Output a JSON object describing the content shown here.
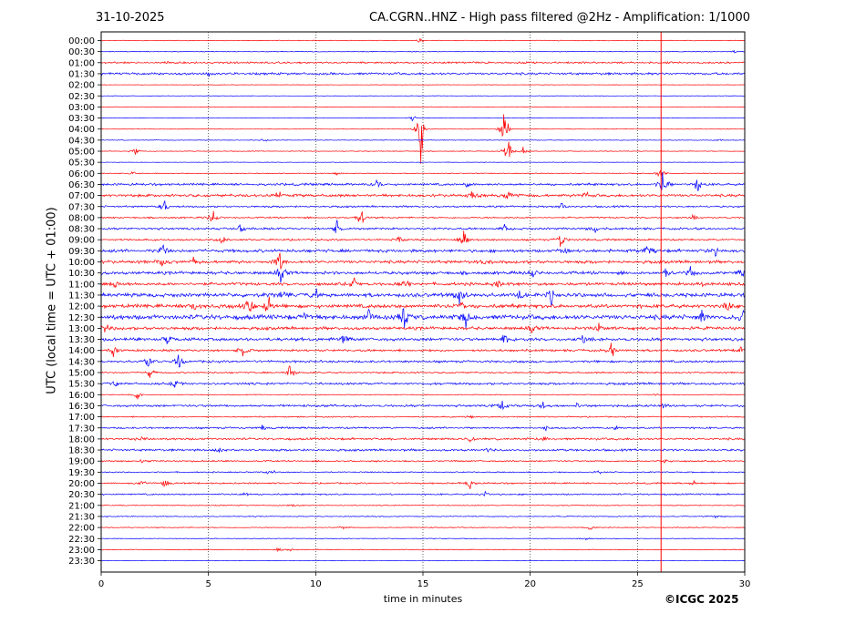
{
  "header": {
    "date": "31-10-2025",
    "title": "CA.CGRN..HNZ - High pass filtered @2Hz - Amplification: 1/1000"
  },
  "copyright": "©ICGC 2025",
  "chart_data": {
    "type": "line",
    "title": "CA.CGRN..HNZ - High pass filtered @2Hz - Amplification: 1/1000",
    "xlabel": "time in minutes",
    "ylabel": "UTC (local time = UTC + 01:00)",
    "xlim": [
      0,
      30
    ],
    "x_ticks": [
      0,
      5,
      10,
      15,
      20,
      25,
      30
    ],
    "grid": "vertical dotted at 5-minute ticks",
    "y_ticks": [
      "00:00",
      "00:30",
      "01:00",
      "01:30",
      "02:00",
      "02:30",
      "03:00",
      "03:30",
      "04:00",
      "04:30",
      "05:00",
      "05:30",
      "06:00",
      "06:30",
      "07:00",
      "07:30",
      "08:00",
      "08:30",
      "09:00",
      "09:30",
      "10:00",
      "10:30",
      "11:00",
      "11:30",
      "12:00",
      "12:30",
      "13:00",
      "13:30",
      "14:00",
      "14:30",
      "15:00",
      "15:30",
      "16:00",
      "16:30",
      "17:00",
      "17:30",
      "18:00",
      "18:30",
      "19:00",
      "19:30",
      "20:00",
      "20:30",
      "21:00",
      "21:30",
      "22:00",
      "22:30",
      "23:00",
      "23:30"
    ],
    "trace_colors": [
      "#ff0000",
      "#0000ff"
    ],
    "rows": [
      {
        "label": "00:00",
        "activity": 0.05,
        "events": [
          {
            "t": 14.9,
            "a": 0.4
          }
        ]
      },
      {
        "label": "00:30",
        "activity": 0.05,
        "events": [
          {
            "t": 29.5,
            "a": 0.3
          }
        ]
      },
      {
        "label": "01:00",
        "activity": 0.12,
        "events": [
          {
            "t": 3.1,
            "a": 0.3
          }
        ]
      },
      {
        "label": "01:30",
        "activity": 0.15,
        "events": [
          {
            "t": 5.0,
            "a": 0.3
          }
        ]
      },
      {
        "label": "02:00",
        "activity": 0.03,
        "events": []
      },
      {
        "label": "02:30",
        "activity": 0.03,
        "events": []
      },
      {
        "label": "03:00",
        "activity": 0.03,
        "events": []
      },
      {
        "label": "03:30",
        "activity": 0.03,
        "events": [
          {
            "t": 14.5,
            "a": 0.5
          }
        ]
      },
      {
        "label": "04:00",
        "activity": 0.03,
        "events": [
          {
            "t": 14.9,
            "a": 5.0
          },
          {
            "t": 18.8,
            "a": 3.5
          }
        ]
      },
      {
        "label": "04:30",
        "activity": 0.04,
        "events": [
          {
            "t": 7.6,
            "a": 0.3
          },
          {
            "t": 28.8,
            "a": 0.3
          }
        ]
      },
      {
        "label": "05:00",
        "activity": 0.05,
        "events": [
          {
            "t": 1.6,
            "a": 0.5
          },
          {
            "t": 19.0,
            "a": 3.0
          },
          {
            "t": 19.7,
            "a": 0.8
          }
        ]
      },
      {
        "label": "05:30",
        "activity": 0.03,
        "events": []
      },
      {
        "label": "06:00",
        "activity": 0.05,
        "events": [
          {
            "t": 1.5,
            "a": 0.3
          },
          {
            "t": 11.0,
            "a": 0.3
          },
          {
            "t": 26.1,
            "a": 1.2
          }
        ]
      },
      {
        "label": "06:30",
        "activity": 0.15,
        "events": [
          {
            "t": 12.8,
            "a": 0.9
          },
          {
            "t": 17.0,
            "a": 0.6
          },
          {
            "t": 27.8,
            "a": 1.2
          },
          {
            "t": 26.2,
            "a": 2.5
          }
        ]
      },
      {
        "label": "07:00",
        "activity": 0.18,
        "events": [
          {
            "t": 8.2,
            "a": 1.0
          },
          {
            "t": 18.9,
            "a": 1.2
          },
          {
            "t": 22.6,
            "a": 0.6
          },
          {
            "t": 17.3,
            "a": 0.7
          }
        ]
      },
      {
        "label": "07:30",
        "activity": 0.12,
        "events": [
          {
            "t": 3.0,
            "a": 1.1
          },
          {
            "t": 21.5,
            "a": 0.8
          }
        ]
      },
      {
        "label": "08:00",
        "activity": 0.1,
        "events": [
          {
            "t": 5.2,
            "a": 1.5
          },
          {
            "t": 12.1,
            "a": 1.6
          },
          {
            "t": 27.6,
            "a": 0.4
          }
        ]
      },
      {
        "label": "08:30",
        "activity": 0.14,
        "events": [
          {
            "t": 6.5,
            "a": 0.9
          },
          {
            "t": 11.0,
            "a": 1.3
          },
          {
            "t": 18.8,
            "a": 0.6
          },
          {
            "t": 23.0,
            "a": 0.6
          }
        ]
      },
      {
        "label": "09:00",
        "activity": 0.12,
        "events": [
          {
            "t": 5.6,
            "a": 0.9
          },
          {
            "t": 13.9,
            "a": 0.6
          },
          {
            "t": 16.9,
            "a": 2.0
          },
          {
            "t": 21.4,
            "a": 2.0
          }
        ]
      },
      {
        "label": "09:30",
        "activity": 0.2,
        "events": [
          {
            "t": 21.6,
            "a": 0.7
          },
          {
            "t": 25.5,
            "a": 0.8
          },
          {
            "t": 28.6,
            "a": 1.3
          },
          {
            "t": 2.9,
            "a": 1.5
          }
        ]
      },
      {
        "label": "10:00",
        "activity": 0.2,
        "events": [
          {
            "t": 2.9,
            "a": 1.0
          },
          {
            "t": 8.3,
            "a": 2.0
          },
          {
            "t": 18.0,
            "a": 1.0
          },
          {
            "t": 4.3,
            "a": 0.6
          }
        ]
      },
      {
        "label": "10:30",
        "activity": 0.2,
        "events": [
          {
            "t": 8.4,
            "a": 1.8
          },
          {
            "t": 20.1,
            "a": 0.8
          },
          {
            "t": 26.3,
            "a": 1.0
          },
          {
            "t": 27.5,
            "a": 1.0
          },
          {
            "t": 29.9,
            "a": 1.1
          }
        ]
      },
      {
        "label": "11:00",
        "activity": 0.2,
        "events": [
          {
            "t": 0.6,
            "a": 1.0
          },
          {
            "t": 11.8,
            "a": 0.8
          },
          {
            "t": 18.5,
            "a": 0.7
          },
          {
            "t": 27.9,
            "a": 0.8
          },
          {
            "t": 14.2,
            "a": 1.2
          }
        ]
      },
      {
        "label": "11:30",
        "activity": 0.25,
        "events": [
          {
            "t": 8.5,
            "a": 0.8
          },
          {
            "t": 10.0,
            "a": 0.8
          },
          {
            "t": 16.7,
            "a": 1.8
          },
          {
            "t": 19.5,
            "a": 1.0
          },
          {
            "t": 21.0,
            "a": 1.2
          }
        ]
      },
      {
        "label": "12:00",
        "activity": 0.25,
        "events": [
          {
            "t": 6.9,
            "a": 1.5
          },
          {
            "t": 7.8,
            "a": 2.2
          },
          {
            "t": 16.8,
            "a": 1.5
          },
          {
            "t": 29.2,
            "a": 0.9
          },
          {
            "t": 4.3,
            "a": 0.9
          }
        ]
      },
      {
        "label": "12:30",
        "activity": 0.3,
        "events": [
          {
            "t": 9.5,
            "a": 0.9
          },
          {
            "t": 12.5,
            "a": 1.2
          },
          {
            "t": 14.1,
            "a": 2.2
          },
          {
            "t": 17.0,
            "a": 1.3
          },
          {
            "t": 28.0,
            "a": 1.2
          },
          {
            "t": 29.9,
            "a": 1.4
          }
        ]
      },
      {
        "label": "13:00",
        "activity": 0.2,
        "events": [
          {
            "t": 0.2,
            "a": 0.8
          },
          {
            "t": 20.1,
            "a": 0.7
          },
          {
            "t": 23.2,
            "a": 0.7
          }
        ]
      },
      {
        "label": "13:30",
        "activity": 0.2,
        "events": [
          {
            "t": 3.1,
            "a": 0.9
          },
          {
            "t": 11.3,
            "a": 0.9
          },
          {
            "t": 18.8,
            "a": 1.1
          },
          {
            "t": 22.5,
            "a": 0.8
          }
        ]
      },
      {
        "label": "14:00",
        "activity": 0.15,
        "events": [
          {
            "t": 0.6,
            "a": 1.0
          },
          {
            "t": 6.6,
            "a": 1.2
          },
          {
            "t": 23.8,
            "a": 1.2
          },
          {
            "t": 29.8,
            "a": 0.6
          }
        ]
      },
      {
        "label": "14:30",
        "activity": 0.15,
        "events": [
          {
            "t": 2.2,
            "a": 1.2
          },
          {
            "t": 3.6,
            "a": 1.5
          }
        ]
      },
      {
        "label": "15:00",
        "activity": 0.1,
        "events": [
          {
            "t": 2.3,
            "a": 1.0
          },
          {
            "t": 8.8,
            "a": 1.6
          }
        ]
      },
      {
        "label": "15:30",
        "activity": 0.15,
        "events": [
          {
            "t": 0.6,
            "a": 0.5
          },
          {
            "t": 3.4,
            "a": 0.8
          }
        ]
      },
      {
        "label": "16:00",
        "activity": 0.05,
        "events": [
          {
            "t": 1.7,
            "a": 1.2
          },
          {
            "t": 26.0,
            "a": 0.4
          }
        ]
      },
      {
        "label": "16:30",
        "activity": 0.15,
        "events": [
          {
            "t": 18.7,
            "a": 1.0
          },
          {
            "t": 20.6,
            "a": 0.7
          },
          {
            "t": 22.2,
            "a": 0.4
          },
          {
            "t": 26.2,
            "a": 0.5
          }
        ]
      },
      {
        "label": "17:00",
        "activity": 0.08,
        "events": [
          {
            "t": 17.2,
            "a": 0.3
          }
        ]
      },
      {
        "label": "17:30",
        "activity": 0.12,
        "events": [
          {
            "t": 7.5,
            "a": 0.5
          },
          {
            "t": 20.7,
            "a": 0.4
          },
          {
            "t": 24.0,
            "a": 0.4
          }
        ]
      },
      {
        "label": "18:00",
        "activity": 0.14,
        "events": [
          {
            "t": 2.0,
            "a": 0.4
          },
          {
            "t": 17.2,
            "a": 0.4
          },
          {
            "t": 20.7,
            "a": 0.3
          }
        ]
      },
      {
        "label": "18:30",
        "activity": 0.14,
        "events": [
          {
            "t": 5.5,
            "a": 0.4
          },
          {
            "t": 18.0,
            "a": 0.3
          }
        ]
      },
      {
        "label": "19:00",
        "activity": 0.1,
        "events": [
          {
            "t": 1.9,
            "a": 0.4
          },
          {
            "t": 26.3,
            "a": 0.4
          }
        ]
      },
      {
        "label": "19:30",
        "activity": 0.08,
        "events": [
          {
            "t": 7.9,
            "a": 0.6
          },
          {
            "t": 23.2,
            "a": 0.4
          }
        ]
      },
      {
        "label": "20:00",
        "activity": 0.1,
        "events": [
          {
            "t": 1.9,
            "a": 0.7
          },
          {
            "t": 3.0,
            "a": 0.7
          },
          {
            "t": 17.2,
            "a": 1.2
          },
          {
            "t": 27.6,
            "a": 0.4
          }
        ]
      },
      {
        "label": "20:30",
        "activity": 0.1,
        "events": [
          {
            "t": 6.7,
            "a": 0.4
          },
          {
            "t": 17.9,
            "a": 0.4
          }
        ]
      },
      {
        "label": "21:00",
        "activity": 0.06,
        "events": [
          {
            "t": 9.0,
            "a": 0.3
          }
        ]
      },
      {
        "label": "21:30",
        "activity": 0.06,
        "events": [
          {
            "t": 28.7,
            "a": 0.4
          }
        ]
      },
      {
        "label": "22:00",
        "activity": 0.06,
        "events": [
          {
            "t": 11.3,
            "a": 0.4
          },
          {
            "t": 22.8,
            "a": 0.6
          }
        ]
      },
      {
        "label": "22:30",
        "activity": 0.05,
        "events": [
          {
            "t": 22.6,
            "a": 0.3
          }
        ]
      },
      {
        "label": "23:00",
        "activity": 0.05,
        "events": [
          {
            "t": 8.3,
            "a": 0.4
          },
          {
            "t": 8.9,
            "a": 0.3
          }
        ]
      },
      {
        "label": "23:30",
        "activity": 0.03,
        "events": []
      }
    ],
    "vertical_spike": {
      "t": 26.1,
      "color": "#ff0000"
    }
  }
}
